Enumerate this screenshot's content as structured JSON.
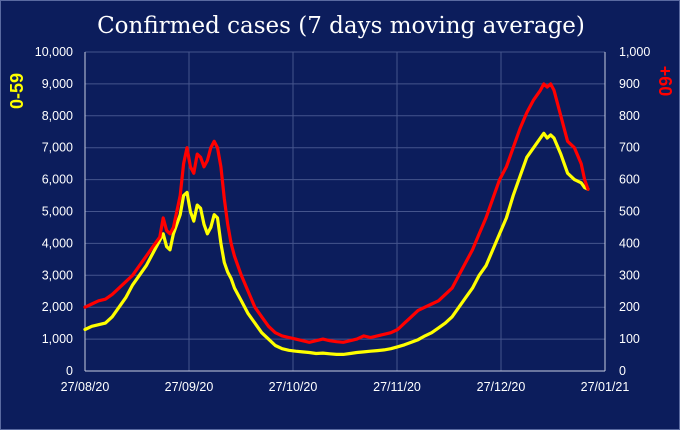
{
  "chart_data": {
    "type": "line",
    "title": "Confirmed cases  (7 days moving average)",
    "xlabel": "",
    "ylabel_left": "0-59",
    "ylabel_right": "+60",
    "x_tick_labels": [
      "27/08/20",
      "27/09/20",
      "27/10/20",
      "27/11/20",
      "27/12/20",
      "27/01/21"
    ],
    "x_range_days": [
      0,
      153
    ],
    "left_axis": {
      "ylim": [
        0,
        10000
      ],
      "tick_values": [
        0,
        1000,
        2000,
        3000,
        4000,
        5000,
        6000,
        7000,
        8000,
        9000,
        10000
      ],
      "tick_labels": [
        "0",
        "1,000",
        "2,000",
        "3,000",
        "4,000",
        "5,000",
        "6,000",
        "7,000",
        "8,000",
        "9,000",
        "10,000"
      ]
    },
    "right_axis": {
      "ylim": [
        0,
        1000
      ],
      "tick_values": [
        0,
        100,
        200,
        300,
        400,
        500,
        600,
        700,
        800,
        900,
        1000
      ],
      "tick_labels": [
        "0",
        "100",
        "200",
        "300",
        "400",
        "500",
        "600",
        "700",
        "800",
        "900",
        "1,000"
      ]
    },
    "grid": true,
    "series": [
      {
        "name": "0-59",
        "axis": "left",
        "color": "#ffff00",
        "points": [
          [
            0,
            1300
          ],
          [
            2,
            1400
          ],
          [
            4,
            1450
          ],
          [
            6,
            1500
          ],
          [
            8,
            1700
          ],
          [
            10,
            2000
          ],
          [
            12,
            2300
          ],
          [
            14,
            2700
          ],
          [
            16,
            3000
          ],
          [
            18,
            3300
          ],
          [
            20,
            3700
          ],
          [
            22,
            4100
          ],
          [
            23,
            4300
          ],
          [
            24,
            3900
          ],
          [
            25,
            3800
          ],
          [
            26,
            4300
          ],
          [
            28,
            4900
          ],
          [
            29,
            5500
          ],
          [
            30,
            5600
          ],
          [
            31,
            5000
          ],
          [
            32,
            4700
          ],
          [
            33,
            5200
          ],
          [
            34,
            5100
          ],
          [
            35,
            4600
          ],
          [
            36,
            4300
          ],
          [
            37,
            4500
          ],
          [
            38,
            4900
          ],
          [
            39,
            4800
          ],
          [
            40,
            4000
          ],
          [
            41,
            3400
          ],
          [
            42,
            3100
          ],
          [
            43,
            2900
          ],
          [
            44,
            2600
          ],
          [
            46,
            2200
          ],
          [
            48,
            1800
          ],
          [
            50,
            1500
          ],
          [
            52,
            1200
          ],
          [
            54,
            1000
          ],
          [
            56,
            800
          ],
          [
            58,
            700
          ],
          [
            60,
            650
          ],
          [
            62,
            620
          ],
          [
            64,
            600
          ],
          [
            66,
            580
          ],
          [
            68,
            550
          ],
          [
            70,
            560
          ],
          [
            72,
            540
          ],
          [
            74,
            520
          ],
          [
            76,
            520
          ],
          [
            78,
            550
          ],
          [
            80,
            580
          ],
          [
            82,
            600
          ],
          [
            84,
            620
          ],
          [
            86,
            640
          ],
          [
            88,
            660
          ],
          [
            90,
            700
          ],
          [
            92,
            760
          ],
          [
            94,
            820
          ],
          [
            96,
            900
          ],
          [
            98,
            980
          ],
          [
            100,
            1100
          ],
          [
            102,
            1200
          ],
          [
            104,
            1350
          ],
          [
            106,
            1500
          ],
          [
            108,
            1700
          ],
          [
            110,
            2000
          ],
          [
            112,
            2300
          ],
          [
            114,
            2600
          ],
          [
            116,
            3000
          ],
          [
            118,
            3300
          ],
          [
            120,
            3800
          ],
          [
            122,
            4300
          ],
          [
            124,
            4800
          ],
          [
            126,
            5500
          ],
          [
            128,
            6100
          ],
          [
            130,
            6700
          ],
          [
            132,
            7000
          ],
          [
            134,
            7300
          ],
          [
            135,
            7450
          ],
          [
            136,
            7300
          ],
          [
            137,
            7400
          ],
          [
            138,
            7300
          ],
          [
            140,
            6800
          ],
          [
            141,
            6500
          ],
          [
            142,
            6200
          ],
          [
            144,
            6000
          ],
          [
            146,
            5900
          ],
          [
            147,
            5750
          ],
          [
            148,
            5700
          ]
        ]
      },
      {
        "name": "+60",
        "axis": "right",
        "color": "#ff0000",
        "points": [
          [
            0,
            200
          ],
          [
            2,
            210
          ],
          [
            4,
            220
          ],
          [
            6,
            225
          ],
          [
            8,
            240
          ],
          [
            10,
            260
          ],
          [
            12,
            280
          ],
          [
            14,
            300
          ],
          [
            16,
            330
          ],
          [
            18,
            360
          ],
          [
            20,
            390
          ],
          [
            22,
            420
          ],
          [
            23,
            480
          ],
          [
            24,
            440
          ],
          [
            25,
            430
          ],
          [
            26,
            450
          ],
          [
            28,
            550
          ],
          [
            29,
            650
          ],
          [
            30,
            700
          ],
          [
            31,
            640
          ],
          [
            32,
            620
          ],
          [
            33,
            680
          ],
          [
            34,
            670
          ],
          [
            35,
            640
          ],
          [
            36,
            660
          ],
          [
            37,
            700
          ],
          [
            38,
            720
          ],
          [
            39,
            700
          ],
          [
            40,
            640
          ],
          [
            41,
            540
          ],
          [
            42,
            460
          ],
          [
            43,
            400
          ],
          [
            44,
            360
          ],
          [
            46,
            300
          ],
          [
            48,
            250
          ],
          [
            50,
            200
          ],
          [
            52,
            170
          ],
          [
            54,
            140
          ],
          [
            56,
            120
          ],
          [
            58,
            110
          ],
          [
            60,
            105
          ],
          [
            62,
            100
          ],
          [
            64,
            95
          ],
          [
            66,
            90
          ],
          [
            68,
            95
          ],
          [
            70,
            100
          ],
          [
            72,
            95
          ],
          [
            74,
            92
          ],
          [
            76,
            90
          ],
          [
            78,
            95
          ],
          [
            80,
            100
          ],
          [
            82,
            110
          ],
          [
            84,
            105
          ],
          [
            86,
            110
          ],
          [
            88,
            115
          ],
          [
            90,
            120
          ],
          [
            92,
            130
          ],
          [
            94,
            150
          ],
          [
            96,
            170
          ],
          [
            98,
            190
          ],
          [
            100,
            200
          ],
          [
            102,
            210
          ],
          [
            104,
            220
          ],
          [
            106,
            240
          ],
          [
            108,
            260
          ],
          [
            110,
            300
          ],
          [
            112,
            340
          ],
          [
            114,
            380
          ],
          [
            116,
            430
          ],
          [
            118,
            480
          ],
          [
            120,
            540
          ],
          [
            122,
            600
          ],
          [
            124,
            640
          ],
          [
            126,
            700
          ],
          [
            128,
            760
          ],
          [
            130,
            810
          ],
          [
            132,
            850
          ],
          [
            134,
            880
          ],
          [
            135,
            900
          ],
          [
            136,
            890
          ],
          [
            137,
            900
          ],
          [
            138,
            880
          ],
          [
            140,
            800
          ],
          [
            141,
            760
          ],
          [
            142,
            720
          ],
          [
            144,
            700
          ],
          [
            146,
            650
          ],
          [
            147,
            600
          ],
          [
            148,
            570
          ]
        ]
      }
    ]
  }
}
